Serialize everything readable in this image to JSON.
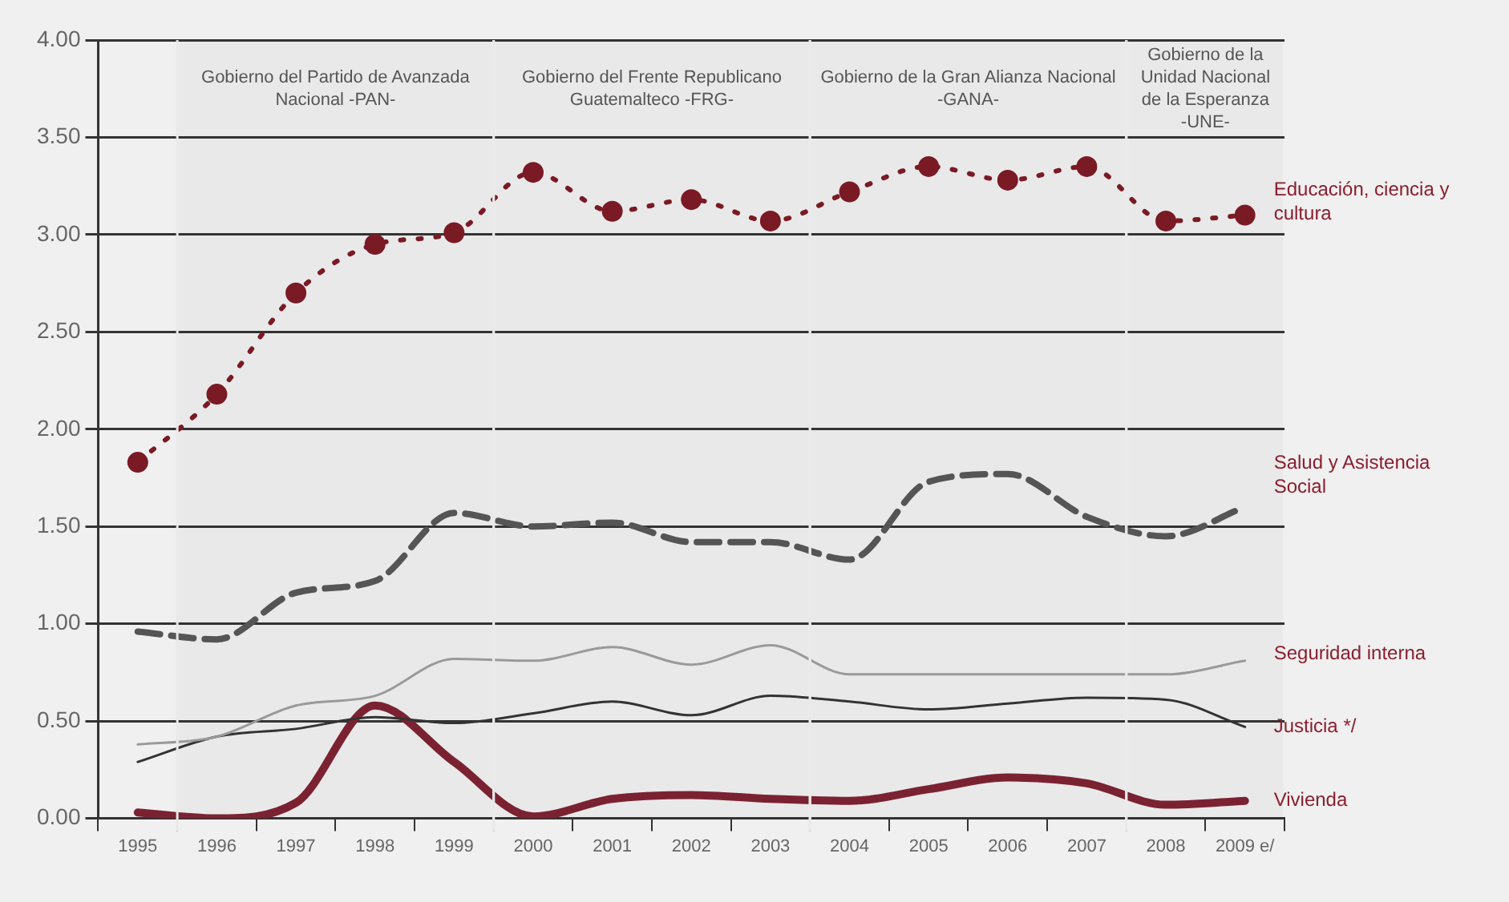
{
  "chart_data": {
    "type": "line",
    "categories": [
      "1995",
      "1996",
      "1997",
      "1998",
      "1999",
      "2000",
      "2001",
      "2002",
      "2003",
      "2004",
      "2005",
      "2006",
      "2007",
      "2008",
      "2009 e/"
    ],
    "series": [
      {
        "name": "Educación, ciencia y cultura",
        "color": "#7a1a24",
        "marker": "circle",
        "line_style": "dotted",
        "values": [
          1.83,
          2.18,
          2.7,
          2.95,
          3.01,
          3.32,
          3.12,
          3.18,
          3.07,
          3.22,
          3.35,
          3.28,
          3.35,
          3.07,
          3.1
        ]
      },
      {
        "name": "Salud y Asistencia Social",
        "color": "#555555",
        "line_style": "dashed",
        "values": [
          0.96,
          0.92,
          1.16,
          1.22,
          1.57,
          1.5,
          1.52,
          1.42,
          1.42,
          1.33,
          1.73,
          1.77,
          1.55,
          1.45,
          1.6
        ]
      },
      {
        "name": "Seguridad interna",
        "color": "#9a9a9a",
        "line_style": "solid",
        "values": [
          0.38,
          0.42,
          0.58,
          0.63,
          0.82,
          0.81,
          0.88,
          0.79,
          0.89,
          0.74,
          0.74,
          0.74,
          0.74,
          0.74,
          0.81
        ]
      },
      {
        "name": "Justicia */",
        "color": "#333333",
        "line_style": "solid",
        "values": [
          0.29,
          0.42,
          0.46,
          0.52,
          0.49,
          0.54,
          0.6,
          0.53,
          0.63,
          0.6,
          0.56,
          0.59,
          0.62,
          0.61,
          0.47
        ]
      },
      {
        "name": "Vivienda",
        "color": "#7b2232",
        "line_style": "solid",
        "values": [
          0.03,
          0.0,
          0.08,
          0.58,
          0.29,
          0.01,
          0.1,
          0.12,
          0.1,
          0.09,
          0.15,
          0.21,
          0.18,
          0.07,
          0.09
        ]
      }
    ],
    "ylim": [
      0,
      4
    ],
    "yticks": [
      {
        "value": 0,
        "label": "0.00"
      },
      {
        "value": 0.5,
        "label": "0.50"
      },
      {
        "value": 1,
        "label": "1.00"
      },
      {
        "value": 1.5,
        "label": "1.50"
      },
      {
        "value": 2,
        "label": "2.00"
      },
      {
        "value": 2.5,
        "label": "2.50"
      },
      {
        "value": 3,
        "label": "3.00"
      },
      {
        "value": 3.5,
        "label": "3.50"
      },
      {
        "value": 4,
        "label": "4.00"
      }
    ],
    "grid": "y",
    "legend": false,
    "bands": [
      {
        "axis": "x",
        "from": "1996",
        "to": "1999",
        "label": "Gobierno del Partido de Avanzada Nacional -PAN-",
        "color": "#e9e9e9"
      },
      {
        "axis": "x",
        "from": "2000",
        "to": "2003",
        "label": "Gobierno del Frente Republicano Guatemalteco -FRG-",
        "color": "#e9e9e9"
      },
      {
        "axis": "x",
        "from": "2004",
        "to": "2007",
        "label": "Gobierno de la Gran Alianza Nacional -GANA-",
        "color": "#e9e9e9"
      },
      {
        "axis": "x",
        "from": "2008",
        "to": "2009 e/",
        "label": "Gobierno de la Unidad Nacional de la Esperanza -UNE-",
        "color": "#e9e9e9"
      }
    ]
  }
}
